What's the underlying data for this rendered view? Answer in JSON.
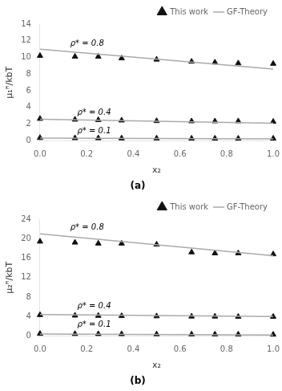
{
  "chart_data": [
    {
      "type": "scatter",
      "title": "(a)",
      "x_label": "x₂",
      "y_label": "μ₁ᴿ/kbT",
      "xlim": [
        0.0,
        1.0
      ],
      "xticks": [
        {
          "value": 0.0,
          "label": "0.0"
        },
        0.2,
        0.4,
        0.6,
        0.8,
        {
          "value": 1.0,
          "label": "1.0"
        }
      ],
      "ylim": [
        0,
        14
      ],
      "yticks": [
        0,
        2,
        4,
        6,
        8,
        10,
        12,
        14
      ],
      "grid": false,
      "legend": "upper right",
      "annotations": [
        {
          "text": "ρ* = 0.8",
          "x": 0.13,
          "y": 11.4
        },
        {
          "text": "ρ* = 0.4",
          "x": 0.16,
          "y": 3.1
        },
        {
          "text": "ρ* = 0.1",
          "x": 0.16,
          "y": 0.9
        }
      ],
      "series": [
        {
          "name": "GF-Theory",
          "type": "line",
          "line_style": "solid",
          "color": "#aaaaaa",
          "x": [
            0.0,
            1.0
          ],
          "values": [
            11.0,
            8.6
          ]
        },
        {
          "name": "GF-Theory",
          "type": "line",
          "line_style": "solid",
          "color": "#aaaaaa",
          "x": [
            0.0,
            1.0
          ],
          "values": [
            2.6,
            2.1
          ]
        },
        {
          "name": "GF-Theory",
          "type": "line",
          "line_style": "solid",
          "color": "#aaaaaa",
          "x": [
            0.0,
            1.0
          ],
          "values": [
            0.32,
            0.22
          ]
        },
        {
          "name": "This work",
          "type": "scatter",
          "marker": "triangle",
          "color": "#111111",
          "x": [
            0.0,
            0.15,
            0.25,
            0.35,
            0.5,
            0.65,
            0.75,
            0.85,
            1.0
          ],
          "values": [
            10.2,
            10.1,
            10.1,
            9.9,
            9.75,
            9.5,
            9.4,
            9.3,
            9.25
          ]
        },
        {
          "name": "This work",
          "type": "scatter",
          "marker": "triangle",
          "color": "#111111",
          "x": [
            0.0,
            0.15,
            0.25,
            0.35,
            0.5,
            0.65,
            0.75,
            0.85,
            1.0
          ],
          "values": [
            2.65,
            2.55,
            2.5,
            2.45,
            2.38,
            2.35,
            2.35,
            2.35,
            2.3
          ]
        },
        {
          "name": "This work",
          "type": "scatter",
          "marker": "triangle",
          "color": "#111111",
          "x": [
            0.0,
            0.15,
            0.25,
            0.35,
            0.5,
            0.65,
            0.75,
            0.85,
            1.0
          ],
          "values": [
            0.35,
            0.33,
            0.32,
            0.3,
            0.3,
            0.28,
            0.28,
            0.27,
            0.27
          ]
        }
      ]
    },
    {
      "type": "scatter",
      "title": "(b)",
      "x_label": "x₂",
      "y_label": "μ₂ᴿ/kbT",
      "xlim": [
        0.0,
        1.0
      ],
      "xticks": [
        {
          "value": 0.0,
          "label": "0.0"
        },
        0.2,
        0.4,
        0.6,
        0.8,
        {
          "value": 1.0,
          "label": "1.0"
        }
      ],
      "ylim": [
        0,
        24
      ],
      "yticks": [
        0,
        4,
        8,
        12,
        16,
        20,
        24
      ],
      "grid": false,
      "legend": "upper right",
      "annotations": [
        {
          "text": "ρ* = 0.8",
          "x": 0.13,
          "y": 21.8
        },
        {
          "text": "ρ* = 0.4",
          "x": 0.16,
          "y": 5.7
        },
        {
          "text": "ρ* = 0.1",
          "x": 0.16,
          "y": 1.9
        }
      ],
      "series": [
        {
          "name": "GF-Theory",
          "type": "line",
          "line_style": "solid",
          "color": "#aaaaaa",
          "x": [
            0.0,
            1.0
          ],
          "values": [
            21.0,
            16.5
          ]
        },
        {
          "name": "GF-Theory",
          "type": "line",
          "line_style": "solid",
          "color": "#aaaaaa",
          "x": [
            0.0,
            1.0
          ],
          "values": [
            4.4,
            4.0
          ]
        },
        {
          "name": "GF-Theory",
          "type": "line",
          "line_style": "solid",
          "color": "#aaaaaa",
          "x": [
            0.0,
            1.0
          ],
          "values": [
            0.4,
            0.2
          ]
        },
        {
          "name": "This work",
          "type": "scatter",
          "marker": "triangle",
          "color": "#111111",
          "x": [
            0.0,
            0.15,
            0.25,
            0.35,
            0.5,
            0.65,
            0.75,
            0.85,
            1.0
          ],
          "values": [
            19.4,
            19.2,
            19.0,
            19.0,
            18.8,
            17.2,
            17.0,
            17.0,
            16.8
          ]
        },
        {
          "name": "This work",
          "type": "scatter",
          "marker": "triangle",
          "color": "#111111",
          "x": [
            0.0,
            0.15,
            0.25,
            0.35,
            0.5,
            0.65,
            0.75,
            0.85,
            1.0
          ],
          "values": [
            4.3,
            4.2,
            4.15,
            4.1,
            4.05,
            4.0,
            4.0,
            3.95,
            3.95
          ]
        },
        {
          "name": "This work",
          "type": "scatter",
          "marker": "triangle",
          "color": "#111111",
          "x": [
            0.0,
            0.15,
            0.25,
            0.35,
            0.5,
            0.65,
            0.75,
            0.85,
            1.0
          ],
          "values": [
            0.45,
            0.42,
            0.4,
            0.38,
            0.35,
            0.33,
            0.32,
            0.3,
            0.28
          ]
        }
      ]
    }
  ]
}
